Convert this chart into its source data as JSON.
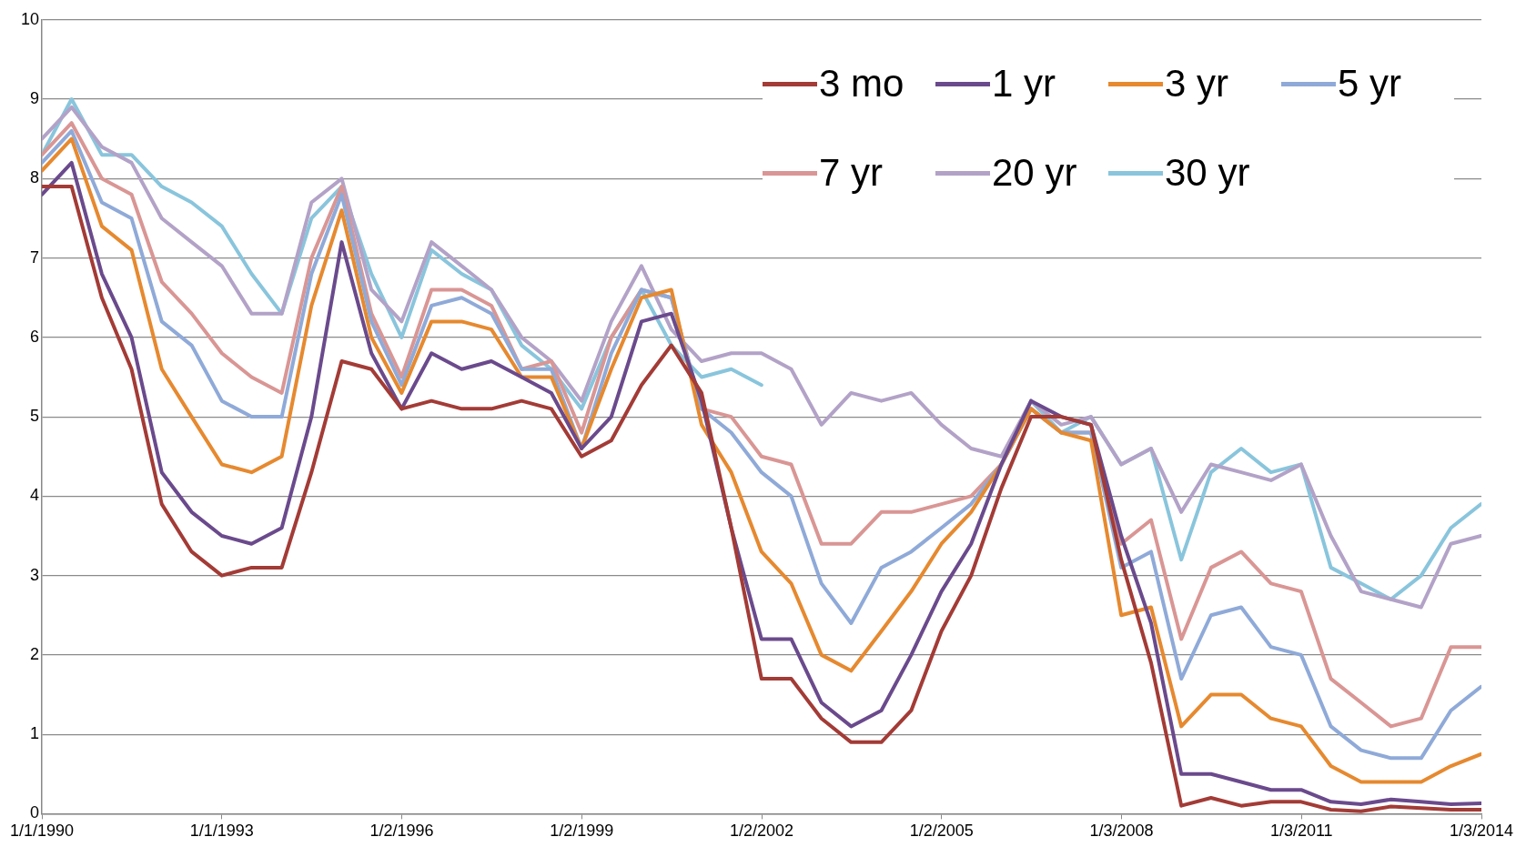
{
  "chart_data": {
    "type": "line",
    "x": [
      "1990-01",
      "1990-07",
      "1991-01",
      "1991-07",
      "1992-01",
      "1992-07",
      "1993-01",
      "1993-07",
      "1994-01",
      "1994-07",
      "1995-01",
      "1995-07",
      "1996-01",
      "1996-07",
      "1997-01",
      "1997-07",
      "1998-01",
      "1998-07",
      "1999-01",
      "1999-07",
      "2000-01",
      "2000-07",
      "2001-01",
      "2001-07",
      "2002-01",
      "2002-07",
      "2003-01",
      "2003-07",
      "2004-01",
      "2004-07",
      "2005-01",
      "2005-07",
      "2006-01",
      "2006-07",
      "2007-01",
      "2007-07",
      "2008-01",
      "2008-07",
      "2009-01",
      "2009-07",
      "2010-01",
      "2010-07",
      "2011-01",
      "2011-07",
      "2012-01",
      "2012-07",
      "2013-01",
      "2013-07",
      "2014-01"
    ],
    "series": [
      {
        "name": "3 mo",
        "color": "#a33b36",
        "values": [
          7.9,
          7.9,
          6.5,
          5.6,
          3.9,
          3.3,
          3.0,
          3.1,
          3.1,
          4.3,
          5.7,
          5.6,
          5.1,
          5.2,
          5.1,
          5.1,
          5.2,
          5.1,
          4.5,
          4.7,
          5.4,
          5.9,
          5.3,
          3.6,
          1.7,
          1.7,
          1.2,
          0.9,
          0.9,
          1.3,
          2.3,
          3.0,
          4.1,
          5.0,
          5.0,
          4.9,
          3.2,
          1.9,
          0.1,
          0.2,
          0.1,
          0.15,
          0.15,
          0.05,
          0.03,
          0.09,
          0.07,
          0.05,
          0.05
        ]
      },
      {
        "name": "1 yr",
        "color": "#6a4a8c",
        "values": [
          7.8,
          8.2,
          6.8,
          6.0,
          4.3,
          3.8,
          3.5,
          3.4,
          3.6,
          5.0,
          7.2,
          5.8,
          5.1,
          5.8,
          5.6,
          5.7,
          5.5,
          5.3,
          4.6,
          5.0,
          6.2,
          6.3,
          5.2,
          3.6,
          2.2,
          2.2,
          1.4,
          1.1,
          1.3,
          2.0,
          2.8,
          3.4,
          4.4,
          5.2,
          5.0,
          4.9,
          3.5,
          2.4,
          0.5,
          0.5,
          0.4,
          0.3,
          0.3,
          0.15,
          0.12,
          0.18,
          0.15,
          0.12,
          0.13
        ]
      },
      {
        "name": "3 yr",
        "color": "#e6892f",
        "values": [
          8.1,
          8.5,
          7.4,
          7.1,
          5.6,
          5.0,
          4.4,
          4.3,
          4.5,
          6.4,
          7.6,
          6.0,
          5.3,
          6.2,
          6.2,
          6.1,
          5.5,
          5.5,
          4.6,
          5.6,
          6.5,
          6.6,
          4.9,
          4.3,
          3.3,
          2.9,
          2.0,
          1.8,
          2.3,
          2.8,
          3.4,
          3.8,
          4.4,
          5.1,
          4.8,
          4.7,
          2.5,
          2.6,
          1.1,
          1.5,
          1.5,
          1.2,
          1.1,
          0.6,
          0.4,
          0.4,
          0.4,
          0.6,
          0.75
        ]
      },
      {
        "name": "5 yr",
        "color": "#8faad8",
        "values": [
          8.2,
          8.6,
          7.7,
          7.5,
          6.2,
          5.9,
          5.2,
          5.0,
          5.0,
          6.8,
          7.8,
          6.2,
          5.4,
          6.4,
          6.5,
          6.3,
          5.6,
          5.6,
          4.6,
          5.8,
          6.6,
          6.5,
          5.1,
          4.8,
          4.3,
          4.0,
          2.9,
          2.4,
          3.1,
          3.3,
          3.6,
          3.9,
          4.4,
          5.1,
          4.8,
          4.8,
          3.1,
          3.3,
          1.7,
          2.5,
          2.6,
          2.1,
          2.0,
          1.1,
          0.8,
          0.7,
          0.7,
          1.3,
          1.6
        ]
      },
      {
        "name": "7 yr",
        "color": "#d99694",
        "values": [
          8.3,
          8.7,
          8.0,
          7.8,
          6.7,
          6.3,
          5.8,
          5.5,
          5.3,
          7.0,
          7.9,
          6.3,
          5.5,
          6.6,
          6.6,
          6.4,
          5.6,
          5.7,
          4.8,
          6.0,
          6.6,
          6.5,
          5.1,
          5.0,
          4.5,
          4.4,
          3.4,
          3.4,
          3.8,
          3.8,
          3.9,
          4.0,
          4.4,
          5.1,
          4.8,
          4.8,
          3.4,
          3.7,
          2.2,
          3.1,
          3.3,
          2.9,
          2.8,
          1.7,
          1.4,
          1.1,
          1.2,
          2.1,
          2.1
        ]
      },
      {
        "name": "20 yr",
        "color": "#b3a2c7",
        "values": [
          8.5,
          8.9,
          8.4,
          8.2,
          7.5,
          7.2,
          6.9,
          6.3,
          6.3,
          7.7,
          8.0,
          6.6,
          6.2,
          7.2,
          6.9,
          6.6,
          6.0,
          5.7,
          5.2,
          6.2,
          6.9,
          6.1,
          5.7,
          5.8,
          5.8,
          5.6,
          4.9,
          5.3,
          5.2,
          5.3,
          4.9,
          4.6,
          4.5,
          5.2,
          4.9,
          5.0,
          4.4,
          4.6,
          3.8,
          4.4,
          4.3,
          4.2,
          4.4,
          3.5,
          2.8,
          2.7,
          2.6,
          3.4,
          3.5
        ]
      },
      {
        "name": "30 yr",
        "color": "#89c5dc",
        "values": [
          8.3,
          9.0,
          8.3,
          8.3,
          7.9,
          7.7,
          7.4,
          6.8,
          6.3,
          7.5,
          7.9,
          6.8,
          6.0,
          7.1,
          6.8,
          6.6,
          5.9,
          5.6,
          5.1,
          6.0,
          6.6,
          5.9,
          5.5,
          5.6,
          5.4,
          null,
          null,
          null,
          null,
          null,
          null,
          null,
          null,
          5.2,
          4.8,
          5.0,
          4.4,
          4.6,
          3.2,
          4.3,
          4.6,
          4.3,
          4.4,
          3.1,
          2.9,
          2.7,
          3.0,
          3.6,
          3.9
        ]
      }
    ],
    "xlim": [
      "1990-01-01",
      "2014-01-03"
    ],
    "xticks": [
      {
        "value": "1990-01-01",
        "label": "1/1/1990"
      },
      {
        "value": "1993-01-01",
        "label": "1/1/1993"
      },
      {
        "value": "1996-01-02",
        "label": "1/2/1996"
      },
      {
        "value": "1999-01-02",
        "label": "1/2/1999"
      },
      {
        "value": "2002-01-02",
        "label": "1/2/2002"
      },
      {
        "value": "2005-01-02",
        "label": "1/2/2005"
      },
      {
        "value": "2008-01-03",
        "label": "1/3/2008"
      },
      {
        "value": "2011-01-03",
        "label": "1/3/2011"
      },
      {
        "value": "2014-01-03",
        "label": "1/3/2014"
      }
    ],
    "ylim": [
      0,
      10
    ],
    "yticks": [
      0,
      1,
      2,
      3,
      4,
      5,
      6,
      7,
      8,
      9,
      10
    ],
    "grid": "y",
    "legend": "top right",
    "marker": "none",
    "line_style": "solid"
  }
}
